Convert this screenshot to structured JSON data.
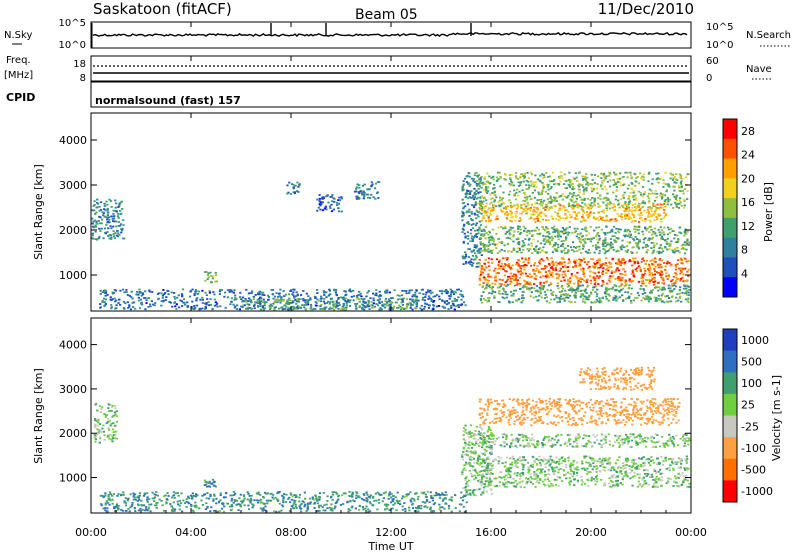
{
  "header": {
    "station": "Saskatoon (fitACF)",
    "beam": "Beam 05",
    "date": "11/Dec/2010"
  },
  "noise_panel": {
    "left_label": "N.Sky",
    "left_ticks": [
      "10^5",
      "10^0"
    ],
    "right_ticks": [
      "10^5",
      "10^0"
    ],
    "right_label": "N.Search"
  },
  "freq_panel": {
    "left_label_1": "Freq.",
    "left_label_2": "[MHz]",
    "left_ticks": [
      "18",
      "8"
    ],
    "right_ticks": [
      "60",
      "0"
    ],
    "right_label": "Nave"
  },
  "cpid": {
    "label": "CPID",
    "program": "normalsound (fast) 157"
  },
  "chart_data": [
    {
      "type": "heatmap",
      "panel": "power",
      "ylabel": "Slant Range [km]",
      "yticks": [
        "1000",
        "2000",
        "3000",
        "4000"
      ],
      "ylim": [
        200,
        4600
      ],
      "colorbar": {
        "label": "Power [dB]",
        "ticks": [
          "4",
          "8",
          "12",
          "16",
          "20",
          "24",
          "28"
        ],
        "range": [
          0,
          30
        ],
        "colors": [
          "#0000ff",
          "#1f4fbf",
          "#2f7f9f",
          "#3f9f6f",
          "#8fbf3f",
          "#f0d020",
          "#ff9f00",
          "#ff5000",
          "#ff0000"
        ]
      },
      "regions": [
        {
          "t0": 0.0,
          "t1": 1.3,
          "r0": 1800,
          "r1": 2700,
          "p": 9
        },
        {
          "t0": 0.3,
          "t1": 15.0,
          "r0": 250,
          "r1": 700,
          "p": 7
        },
        {
          "t0": 6.0,
          "t1": 13.0,
          "r0": 250,
          "r1": 500,
          "p": 12
        },
        {
          "t0": 4.5,
          "t1": 5.0,
          "r0": 850,
          "r1": 1100,
          "p": 14
        },
        {
          "t0": 7.8,
          "t1": 8.3,
          "r0": 2800,
          "r1": 3100,
          "p": 8
        },
        {
          "t0": 10.5,
          "t1": 11.5,
          "r0": 2700,
          "r1": 3100,
          "p": 8
        },
        {
          "t0": 9.0,
          "t1": 10.0,
          "r0": 2400,
          "r1": 2800,
          "p": 6
        },
        {
          "t0": 14.8,
          "t1": 15.6,
          "r0": 1200,
          "r1": 3300,
          "p": 9
        },
        {
          "t0": 15.3,
          "t1": 23.9,
          "r0": 2500,
          "r1": 3300,
          "p": 14
        },
        {
          "t0": 15.5,
          "t1": 23.0,
          "r0": 2200,
          "r1": 2600,
          "p": 20
        },
        {
          "t0": 15.5,
          "t1": 23.9,
          "r0": 1500,
          "r1": 2100,
          "p": 13
        },
        {
          "t0": 15.5,
          "t1": 23.9,
          "r0": 800,
          "r1": 1400,
          "p": 24
        },
        {
          "t0": 15.5,
          "t1": 23.9,
          "r0": 400,
          "r1": 800,
          "p": 12
        }
      ]
    },
    {
      "type": "heatmap",
      "panel": "velocity",
      "ylabel": "Slant Range [km]",
      "yticks": [
        "1000",
        "2000",
        "3000",
        "4000"
      ],
      "ylim": [
        200,
        4600
      ],
      "colorbar": {
        "label": "Velocity [m s-1]",
        "ticks": [
          "1000",
          "500",
          "100",
          "25",
          "-25",
          "-100",
          "-500",
          "-1000"
        ],
        "colors": [
          "#1f3fbf",
          "#2f6fbf",
          "#3f9f6f",
          "#6fcf3f",
          "#c8c8c0",
          "#ffa040",
          "#ff7000",
          "#ff0000"
        ]
      },
      "regions": [
        {
          "t0": 0.1,
          "t1": 1.0,
          "r0": 1800,
          "r1": 2700,
          "v": 0
        },
        {
          "t0": 0.3,
          "t1": 15.0,
          "r0": 250,
          "r1": 700,
          "v": 80
        },
        {
          "t0": 4.5,
          "t1": 5.0,
          "r0": 800,
          "r1": 1000,
          "v": 80
        },
        {
          "t0": 14.8,
          "t1": 16.0,
          "r0": 600,
          "r1": 2200,
          "v": 0
        },
        {
          "t0": 15.5,
          "t1": 23.9,
          "r0": 800,
          "r1": 1500,
          "v": 0
        },
        {
          "t0": 15.5,
          "t1": 23.9,
          "r0": 1700,
          "r1": 2000,
          "v": 0
        },
        {
          "t0": 15.5,
          "t1": 23.5,
          "r0": 2200,
          "r1": 2800,
          "v": -300
        },
        {
          "t0": 19.5,
          "t1": 22.5,
          "r0": 3000,
          "r1": 3500,
          "v": -300
        }
      ]
    }
  ],
  "time_axis": {
    "ticks": [
      "00:00",
      "04:00",
      "08:00",
      "12:00",
      "16:00",
      "20:00",
      "00:00"
    ],
    "xlabel": "Time UT",
    "range_hours": [
      0,
      24
    ]
  }
}
